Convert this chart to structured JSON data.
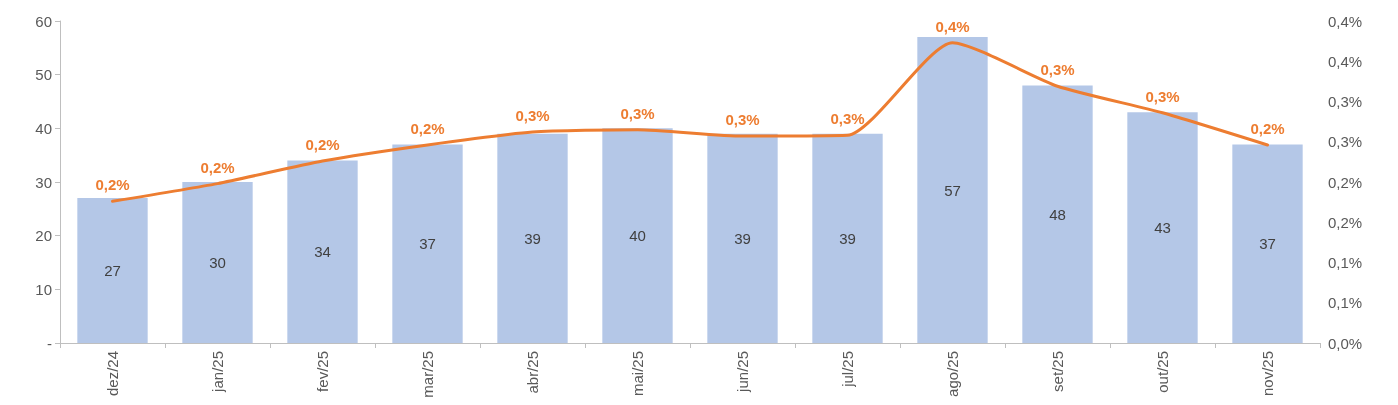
{
  "chart_data": {
    "type": "bar",
    "categories": [
      "dez/24",
      "jan/25",
      "fev/25",
      "mar/25",
      "abr/25",
      "mai/25",
      "jun/25",
      "jul/25",
      "ago/25",
      "set/25",
      "out/25",
      "nov/25"
    ],
    "series": [
      {
        "color": "#b4c7e7",
        "values": [
          27,
          30,
          34,
          37,
          39,
          40,
          39,
          39,
          57,
          48,
          43,
          37
        ],
        "data_labels": true
      },
      {
        "type": "line",
        "axis": "y2",
        "color": "#ed7d31",
        "values": [
          0.176,
          0.198,
          0.226,
          0.246,
          0.262,
          0.265,
          0.257,
          0.258,
          0.373,
          0.319,
          0.286,
          0.246
        ],
        "value_labels": [
          "0,2%",
          "0,2%",
          "0,2%",
          "0,2%",
          "0,3%",
          "0,3%",
          "0,3%",
          "0,3%",
          "0,4%",
          "0,3%",
          "0,3%",
          "0,2%"
        ]
      }
    ],
    "ylim": [
      0,
      60
    ],
    "yticks": [
      {
        "value": 0,
        "label": "-"
      },
      10,
      20,
      30,
      40,
      50,
      60
    ],
    "y2lim": [
      0,
      0.4
    ],
    "y2ticks": [
      {
        "value": 0,
        "label": "0,0%"
      },
      {
        "value": 0.05,
        "label": "0,1%"
      },
      {
        "value": 0.1,
        "label": "0,1%"
      },
      {
        "value": 0.15,
        "label": "0,2%"
      },
      {
        "value": 0.2,
        "label": "0,2%"
      },
      {
        "value": 0.25,
        "label": "0,3%"
      },
      {
        "value": 0.3,
        "label": "0,3%"
      },
      {
        "value": 0.35,
        "label": "0,4%"
      },
      {
        "value": 0.4,
        "label": "0,4%"
      }
    ],
    "grid": false,
    "marker": "none",
    "line_style": "solid"
  }
}
